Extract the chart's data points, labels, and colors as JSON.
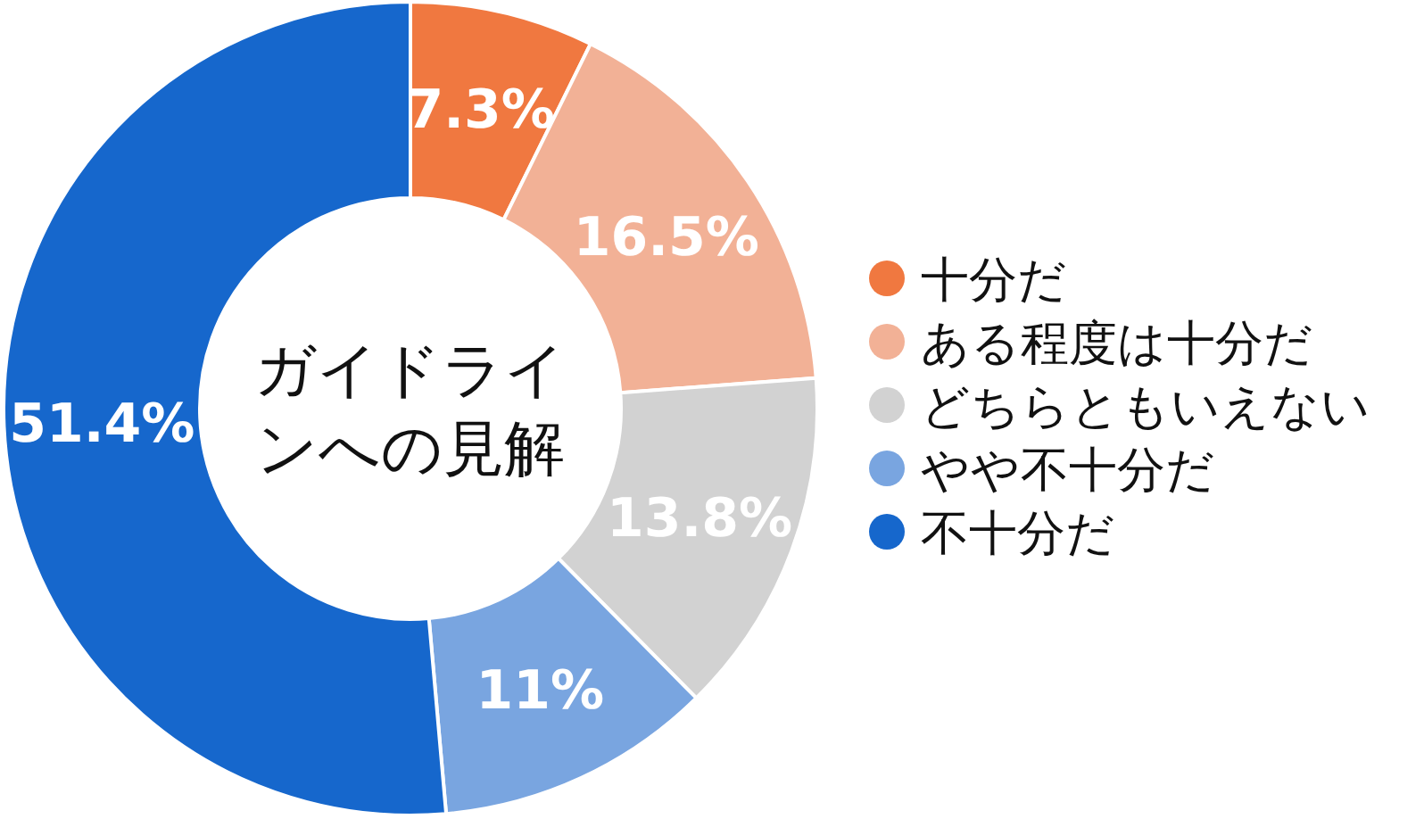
{
  "chart_data": {
    "type": "donut",
    "title": "ガイドラインへの見解",
    "categories": [
      "十分だ",
      "ある程度は十分だ",
      "どちらともいえない",
      "やや不十分だ",
      "不十分だ"
    ],
    "values": [
      7.3,
      16.5,
      13.8,
      11,
      51.4
    ],
    "value_labels": [
      "7.3%",
      "16.5%",
      "13.8%",
      "11%",
      "51.4%"
    ],
    "colors": [
      "#f07840",
      "#f2b196",
      "#d2d2d2",
      "#79a5e0",
      "#1667cc"
    ],
    "legend": "right"
  }
}
